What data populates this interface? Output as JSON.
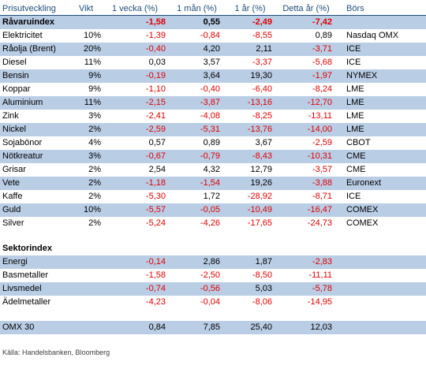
{
  "headers": [
    "Prisutveckling",
    "Vikt",
    "1 vecka (%)",
    "1 mån (%)",
    "1 år (%)",
    "Detta år (%)",
    "Börs"
  ],
  "commodity_index": {
    "name": "Råvaruindex",
    "values": [
      "-1,58",
      "0,55",
      "-2,49",
      "-7,42"
    ]
  },
  "commodities": [
    {
      "name": "Elektricitet",
      "weight": "10%",
      "w1": "-1,39",
      "m1": "-0,84",
      "y1": "-8,55",
      "ytd": "0,89",
      "exchange": "Nasdaq OMX"
    },
    {
      "name": "Råolja (Brent)",
      "weight": "20%",
      "w1": "-0,40",
      "m1": "4,20",
      "y1": "2,11",
      "ytd": "-3,71",
      "exchange": "ICE"
    },
    {
      "name": "Diesel",
      "weight": "11%",
      "w1": "0,03",
      "m1": "3,57",
      "y1": "-3,37",
      "ytd": "-5,68",
      "exchange": "ICE"
    },
    {
      "name": "Bensin",
      "weight": "9%",
      "w1": "-0,19",
      "m1": "3,64",
      "y1": "19,30",
      "ytd": "-1,97",
      "exchange": "NYMEX"
    },
    {
      "name": "Koppar",
      "weight": "9%",
      "w1": "-1,10",
      "m1": "-0,40",
      "y1": "-6,40",
      "ytd": "-8,24",
      "exchange": "LME"
    },
    {
      "name": "Aluminium",
      "weight": "11%",
      "w1": "-2,15",
      "m1": "-3,87",
      "y1": "-13,16",
      "ytd": "-12,70",
      "exchange": "LME"
    },
    {
      "name": "Zink",
      "weight": "3%",
      "w1": "-2,41",
      "m1": "-4,08",
      "y1": "-8,25",
      "ytd": "-13,11",
      "exchange": "LME"
    },
    {
      "name": "Nickel",
      "weight": "2%",
      "w1": "-2,59",
      "m1": "-5,31",
      "y1": "-13,76",
      "ytd": "-14,00",
      "exchange": "LME"
    },
    {
      "name": "Sojabönor",
      "weight": "4%",
      "w1": "0,57",
      "m1": "0,89",
      "y1": "3,67",
      "ytd": "-2,59",
      "exchange": "CBOT"
    },
    {
      "name": "Nötkreatur",
      "weight": "3%",
      "w1": "-0,67",
      "m1": "-0,79",
      "y1": "-8,43",
      "ytd": "-10,31",
      "exchange": "CME"
    },
    {
      "name": "Grisar",
      "weight": "2%",
      "w1": "2,54",
      "m1": "4,32",
      "y1": "12,79",
      "ytd": "-3,57",
      "exchange": "CME"
    },
    {
      "name": "Vete",
      "weight": "2%",
      "w1": "-1,18",
      "m1": "-1,54",
      "y1": "19,26",
      "ytd": "-3,88",
      "exchange": "Euronext"
    },
    {
      "name": "Kaffe",
      "weight": "2%",
      "w1": "-5,30",
      "m1": "1,72",
      "y1": "-28,92",
      "ytd": "-8,71",
      "exchange": "ICE"
    },
    {
      "name": "Guld",
      "weight": "10%",
      "w1": "-5,57",
      "m1": "-0,05",
      "y1": "-10,49",
      "ytd": "-16,47",
      "exchange": "COMEX"
    },
    {
      "name": "Silver",
      "weight": "2%",
      "w1": "-5,24",
      "m1": "-4,26",
      "y1": "-17,65",
      "ytd": "-24,73",
      "exchange": "COMEX"
    }
  ],
  "sector_heading": "Sektorindex",
  "sectors": [
    {
      "name": "Energi",
      "w1": "-0,14",
      "m1": "2,86",
      "y1": "1,87",
      "ytd": "-2,83"
    },
    {
      "name": "Basmetaller",
      "w1": "-1,58",
      "m1": "-2,50",
      "y1": "-8,50",
      "ytd": "-11,11"
    },
    {
      "name": "Livsmedel",
      "w1": "-0,74",
      "m1": "-0,56",
      "y1": "5,03",
      "ytd": "-5,78"
    },
    {
      "name": "Ädelmetaller",
      "w1": "-4,23",
      "m1": "-0,04",
      "y1": "-8,06",
      "ytd": "-14,95"
    }
  ],
  "omx": {
    "name": "OMX 30",
    "w1": "0,84",
    "m1": "7,85",
    "y1": "25,40",
    "ytd": "12,03"
  },
  "source": "Källa: Handelsbanken, Bloomberg",
  "colors": {
    "negative": "#e00000",
    "header_text": "#1f4e79",
    "row_shade": "#b9cde5"
  }
}
